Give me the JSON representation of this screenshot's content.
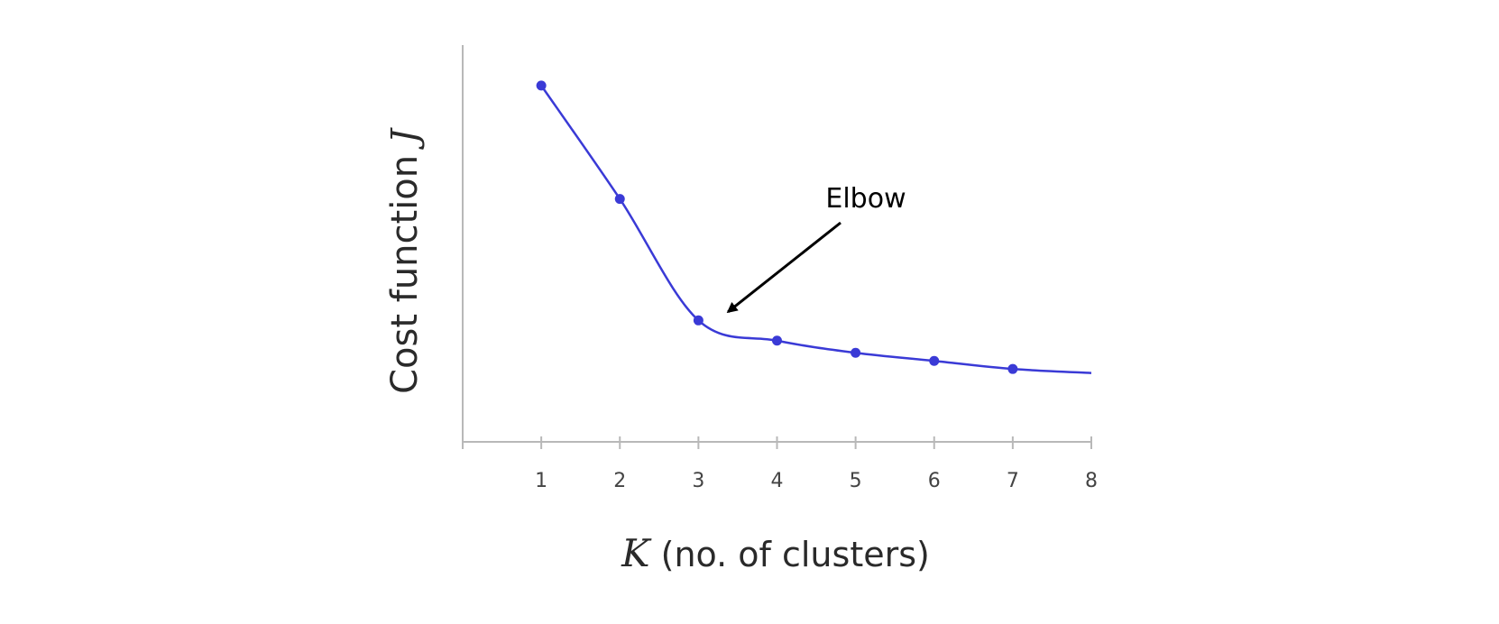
{
  "chart_data": {
    "type": "line",
    "x": [
      1,
      2,
      3,
      4,
      5,
      6,
      7,
      8
    ],
    "series": [
      {
        "values": [
          10.0,
          7.2,
          4.2,
          3.7,
          3.4,
          3.2,
          3.0,
          2.9
        ]
      }
    ],
    "markers_at": [
      1,
      2,
      3,
      4,
      5,
      6,
      7
    ],
    "xlim": [
      0,
      8
    ],
    "ylim": [
      1.2,
      11
    ],
    "x_tick_labels": [
      "1",
      "2",
      "3",
      "4",
      "5",
      "6",
      "7",
      "8"
    ],
    "ylabel_text": "Cost function ",
    "ylabel_var": "J",
    "xlabel_var": "K",
    "xlabel_text": " (no. of clusters)",
    "annotation": {
      "text": "Elbow",
      "points_to": [
        3.4,
        4.5
      ]
    },
    "line_color": "#3a3ad6",
    "axis_color": "#b8b8b8",
    "grid": false,
    "legend": "none"
  }
}
